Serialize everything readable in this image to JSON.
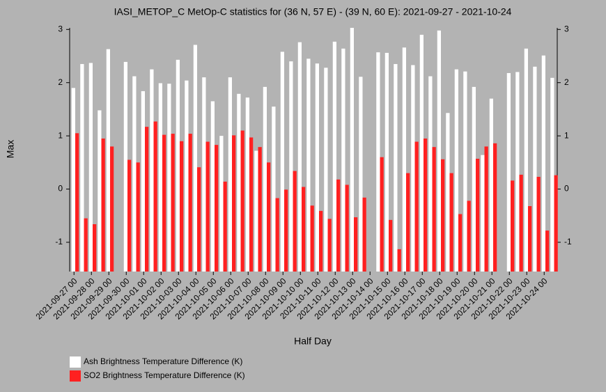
{
  "chart_data": {
    "type": "bar",
    "title": "IASI_METOP_C MetOp-C statistics for (36 N, 57 E) - (39 N, 60 E): 2021-09-27 - 2021-10-24",
    "xlabel": "Half Day",
    "ylabel": "Max",
    "categories": [
      "2021-09-27 00",
      null,
      "2021-09-28 00",
      null,
      "2021-09-29 00",
      null,
      "2021-09-30 00",
      null,
      "2021-10-01 00",
      null,
      "2021-10-02 00",
      null,
      "2021-10-03 00",
      null,
      "2021-10-04 00",
      null,
      "2021-10-05 00",
      null,
      "2021-10-06 00",
      null,
      "2021-10-07 00",
      null,
      "2021-10-08 00",
      null,
      "2021-10-09 00",
      null,
      "2021-10-10 00",
      null,
      "2021-10-11 00",
      null,
      "2021-10-12 00",
      null,
      "2021-10-13 00",
      null,
      "2021-10-14 00",
      null,
      "2021-10-15 00",
      null,
      "2021-10-16 00",
      null,
      "2021-10-17 00",
      null,
      "2021-10-18 00",
      null,
      "2021-10-19 00",
      null,
      "2021-10-20 00",
      null,
      "2021-10-21 00",
      null,
      "2021-10-22 00",
      null,
      "2021-10-23 00",
      null,
      "2021-10-24 00",
      null
    ],
    "series": [
      {
        "name": "Ash Brightness Temperature Difference (K)",
        "color": "#ffffff",
        "values": [
          1.9,
          2.35,
          2.37,
          1.48,
          2.63,
          null,
          2.39,
          2.12,
          1.84,
          2.25,
          1.99,
          1.98,
          2.43,
          2.04,
          2.71,
          2.1,
          1.65,
          1.0,
          2.1,
          1.79,
          1.72,
          0.72,
          1.92,
          1.55,
          2.58,
          2.4,
          2.76,
          2.45,
          2.36,
          2.28,
          2.77,
          2.64,
          3.03,
          2.11,
          null,
          2.57,
          2.56,
          2.35,
          2.66,
          2.33,
          2.9,
          2.12,
          2.98,
          1.43,
          2.25,
          2.21,
          1.92,
          0.64,
          1.7,
          null,
          2.18,
          2.2,
          2.64,
          2.3,
          2.51,
          2.09
        ]
      },
      {
        "name": "SO2 Brightness Temperature Difference (K)",
        "color": "#ff2020",
        "values": [
          1.05,
          -0.55,
          -0.66,
          0.95,
          0.8,
          null,
          0.55,
          0.5,
          1.17,
          1.27,
          1.02,
          1.04,
          0.9,
          1.04,
          0.41,
          0.89,
          0.83,
          0.14,
          1.01,
          1.1,
          0.97,
          0.79,
          0.5,
          -0.17,
          -0.01,
          0.34,
          0.04,
          -0.31,
          -0.41,
          -0.56,
          0.18,
          0.08,
          -0.53,
          -0.16,
          null,
          0.6,
          -0.58,
          -1.13,
          0.3,
          0.89,
          0.95,
          0.79,
          0.56,
          0.3,
          -0.47,
          -0.22,
          0.57,
          0.8,
          0.86,
          null,
          0.16,
          0.27,
          -0.32,
          0.23,
          -0.78,
          0.26
        ]
      }
    ],
    "ylim": [
      -1.55,
      3.03
    ],
    "yticks": [
      -1,
      0,
      1,
      2,
      3
    ]
  }
}
